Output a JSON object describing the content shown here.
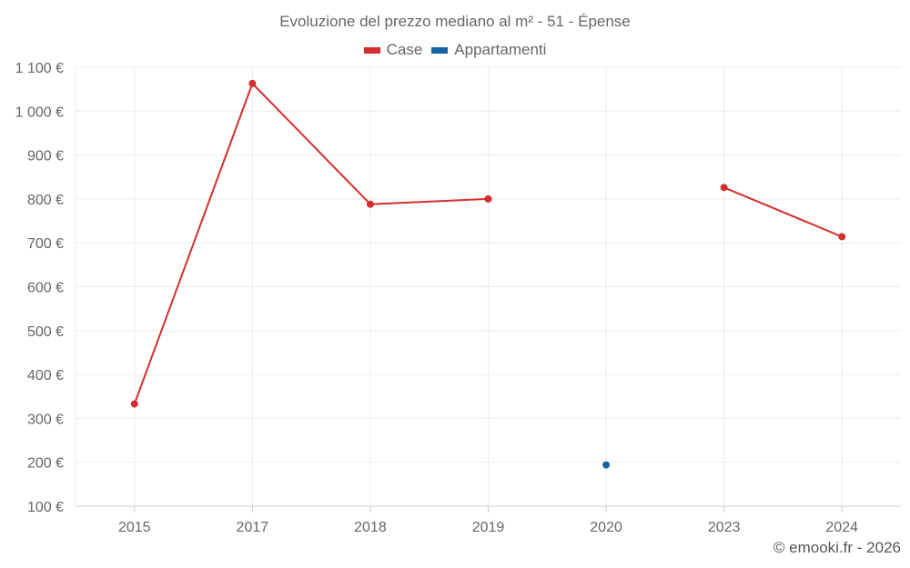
{
  "chart_data": {
    "type": "line",
    "title": "Evoluzione del prezzo mediano al m² - 51 - Épense",
    "categories": [
      "2015",
      "2017",
      "2018",
      "2019",
      "2020",
      "2023",
      "2024"
    ],
    "y_ticks": [
      "1 100 €",
      "1 000 €",
      "900 €",
      "800 €",
      "700 €",
      "600 €",
      "500 €",
      "400 €",
      "300 €",
      "200 €",
      "100 €"
    ],
    "y_tick_values": [
      1100,
      1000,
      900,
      800,
      700,
      600,
      500,
      400,
      300,
      200,
      100
    ],
    "ylim": [
      100,
      1100
    ],
    "grid": true,
    "legend_position": "top-center",
    "series": [
      {
        "name": "Case",
        "color": "#d32f2f",
        "values": [
          333,
          1063,
          788,
          800,
          null,
          826,
          714
        ]
      },
      {
        "name": "Appartamenti",
        "color": "#1565a0",
        "values": [
          null,
          null,
          null,
          null,
          194,
          null,
          null
        ]
      }
    ]
  },
  "footer": {
    "credit": "© emooki.fr - 2026"
  }
}
